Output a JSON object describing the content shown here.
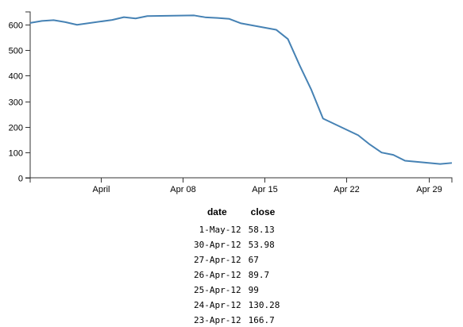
{
  "chart_data": {
    "type": "line",
    "title": "",
    "xlabel": "",
    "ylabel": "",
    "x_type": "date",
    "xlim": [
      "2012-03-26",
      "2012-05-01"
    ],
    "ylim": [
      0,
      650
    ],
    "y_ticks": [
      0,
      100,
      200,
      300,
      400,
      500,
      600
    ],
    "x_ticks": [
      {
        "date": "2012-04-01",
        "label": "April"
      },
      {
        "date": "2012-04-08",
        "label": "Apr 08"
      },
      {
        "date": "2012-04-15",
        "label": "Apr 15"
      },
      {
        "date": "2012-04-22",
        "label": "Apr 22"
      },
      {
        "date": "2012-04-29",
        "label": "Apr 29"
      }
    ],
    "grid": false,
    "series_color": "#4682b4",
    "x": [
      "2012-03-26",
      "2012-03-27",
      "2012-03-28",
      "2012-03-29",
      "2012-03-30",
      "2012-04-02",
      "2012-04-03",
      "2012-04-04",
      "2012-04-05",
      "2012-04-09",
      "2012-04-10",
      "2012-04-11",
      "2012-04-12",
      "2012-04-13",
      "2012-04-16",
      "2012-04-17",
      "2012-04-18",
      "2012-04-19",
      "2012-04-20",
      "2012-04-23",
      "2012-04-24",
      "2012-04-25",
      "2012-04-26",
      "2012-04-27",
      "2012-04-30",
      "2012-05-01"
    ],
    "values": [
      606.98,
      614.48,
      617.62,
      609.86,
      599.55,
      618.63,
      629.32,
      624.31,
      633.68,
      636.23,
      628.44,
      626.2,
      622.77,
      605.23,
      580.13,
      543.7,
      441.0,
      345.0,
      232.0,
      166.7,
      130.28,
      99,
      89.7,
      67,
      53.98,
      58.13
    ]
  },
  "table": {
    "headers": {
      "date": "date",
      "close": "close"
    },
    "rows": [
      {
        "date": "1-May-12",
        "close": "58.13"
      },
      {
        "date": "30-Apr-12",
        "close": "53.98"
      },
      {
        "date": "27-Apr-12",
        "close": "67"
      },
      {
        "date": "26-Apr-12",
        "close": "89.7"
      },
      {
        "date": "25-Apr-12",
        "close": "99"
      },
      {
        "date": "24-Apr-12",
        "close": "130.28"
      },
      {
        "date": "23-Apr-12",
        "close": "166.7"
      }
    ]
  }
}
